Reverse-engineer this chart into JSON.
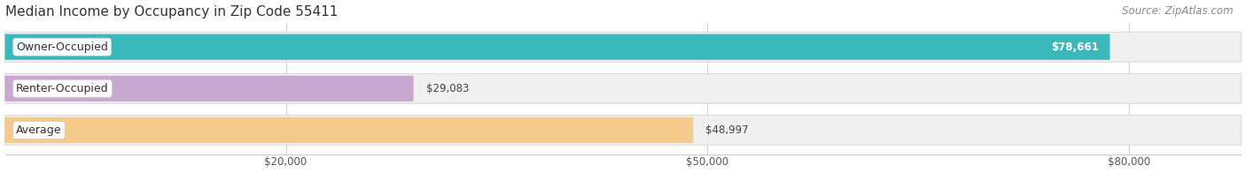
{
  "title": "Median Income by Occupancy in Zip Code 55411",
  "source": "Source: ZipAtlas.com",
  "categories": [
    "Owner-Occupied",
    "Renter-Occupied",
    "Average"
  ],
  "values": [
    78661,
    29083,
    48997
  ],
  "value_labels": [
    "$78,661",
    "$29,083",
    "$48,997"
  ],
  "value_inside": [
    true,
    false,
    false
  ],
  "bar_colors": [
    "#3ab8bc",
    "#c8a8d0",
    "#f5c98a"
  ],
  "xmin": 0,
  "xmax": 88000,
  "xticks": [
    20000,
    50000,
    80000
  ],
  "xtick_labels": [
    "$20,000",
    "$50,000",
    "$80,000"
  ],
  "title_fontsize": 11,
  "source_fontsize": 8.5,
  "label_fontsize": 9,
  "value_fontsize": 8.5,
  "tick_fontsize": 8.5,
  "figsize": [
    14.06,
    1.96
  ],
  "dpi": 100
}
